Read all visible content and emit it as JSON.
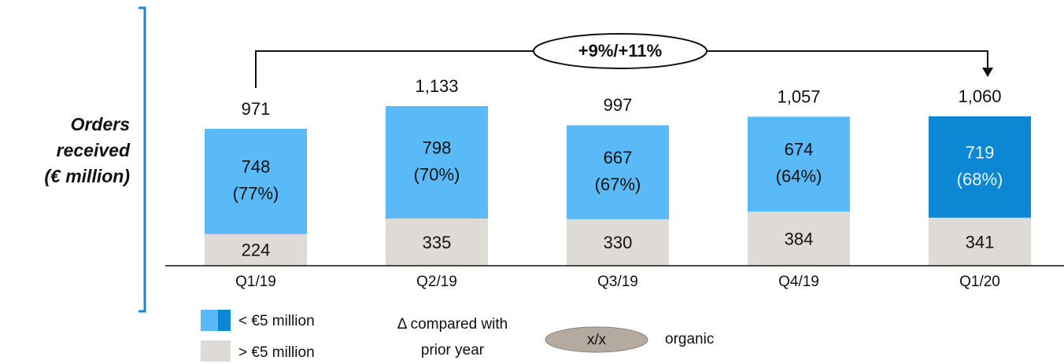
{
  "chart_data": {
    "type": "stacked_bar",
    "ylabel_lines": [
      "Orders",
      "received",
      "(€ million)"
    ],
    "annotation": "+9%/+11%",
    "categories": [
      "Q1/19",
      "Q2/19",
      "Q3/19",
      "Q4/19",
      "Q1/20"
    ],
    "series": [
      {
        "name": "> €5 million",
        "color": "#dedbd6",
        "values": [
          224,
          335,
          330,
          384,
          341
        ]
      },
      {
        "name": "< €5 million",
        "colors": [
          "#5ab9f7",
          "#5ab9f7",
          "#5ab9f7",
          "#5ab9f7",
          "#0b87d4"
        ],
        "values": [
          748,
          798,
          667,
          674,
          719
        ],
        "shares": [
          77,
          70,
          67,
          64,
          68
        ],
        "share_labels": [
          "(77%)",
          "(70%)",
          "(67%)",
          "(64%)",
          "(68%)"
        ]
      }
    ],
    "totals": [
      971,
      1133,
      997,
      1057,
      1060
    ],
    "total_labels": [
      "971",
      "1,133",
      "997",
      "1,057",
      "1,060"
    ],
    "ylim": [
      0,
      1250
    ],
    "legend_note": {
      "lines": [
        "Δ compared with",
        "prior year"
      ],
      "key": "x/x",
      "key_label": "organic"
    }
  }
}
